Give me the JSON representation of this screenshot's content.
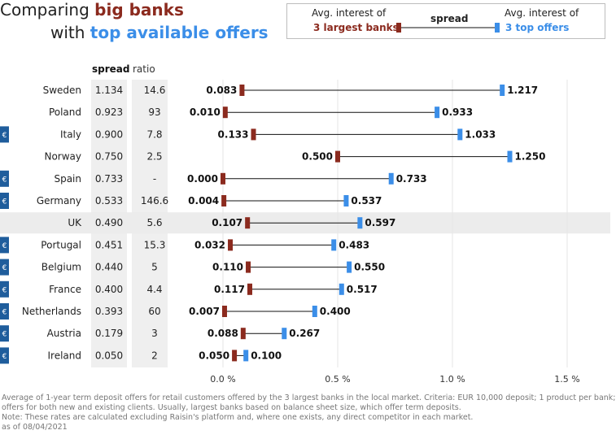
{
  "title": {
    "line1_plain": "Comparing ",
    "line1_accent": "big banks",
    "line2_plain": "with ",
    "line2_accent": "top available offers"
  },
  "legend": {
    "left_line1": "Avg. interest of",
    "left_line2": "3 largest banks",
    "middle": "spread",
    "right_line1": "Avg. interest of",
    "right_line2": "3 top offers"
  },
  "columns": {
    "spread": "spread",
    "ratio": "ratio"
  },
  "colors": {
    "big_banks": "#8b2a1e",
    "top_offers": "#3b8ee8",
    "euro_badge": "#1f5d9c",
    "highlight_row": "#ececec",
    "column_band": "#efefef"
  },
  "euro_icon": {
    "icon": "euro-badge-icon",
    "glyph": "€"
  },
  "chart_data": {
    "type": "dumbbell",
    "x_ticks": [
      "0.0 %",
      "0.5 %",
      "1.0 %",
      "1.5 %"
    ],
    "xlim": [
      0,
      1.5
    ],
    "grid": true,
    "highlight": "UK",
    "rows": [
      {
        "country": "Sweden",
        "spread": "1.134",
        "ratio": "14.6",
        "big": "0.083",
        "top": "1.217",
        "euro": false
      },
      {
        "country": "Poland",
        "spread": "0.923",
        "ratio": "93",
        "big": "0.010",
        "top": "0.933",
        "euro": false
      },
      {
        "country": "Italy",
        "spread": "0.900",
        "ratio": "7.8",
        "big": "0.133",
        "top": "1.033",
        "euro": true
      },
      {
        "country": "Norway",
        "spread": "0.750",
        "ratio": "2.5",
        "big": "0.500",
        "top": "1.250",
        "euro": false
      },
      {
        "country": "Spain",
        "spread": "0.733",
        "ratio": "-",
        "big": "0.000",
        "top": "0.733",
        "euro": true
      },
      {
        "country": "Germany",
        "spread": "0.533",
        "ratio": "146.6",
        "big": "0.004",
        "top": "0.537",
        "euro": true
      },
      {
        "country": "UK",
        "spread": "0.490",
        "ratio": "5.6",
        "big": "0.107",
        "top": "0.597",
        "euro": false
      },
      {
        "country": "Portugal",
        "spread": "0.451",
        "ratio": "15.3",
        "big": "0.032",
        "top": "0.483",
        "euro": true
      },
      {
        "country": "Belgium",
        "spread": "0.440",
        "ratio": "5",
        "big": "0.110",
        "top": "0.550",
        "euro": true
      },
      {
        "country": "France",
        "spread": "0.400",
        "ratio": "4.4",
        "big": "0.117",
        "top": "0.517",
        "euro": true
      },
      {
        "country": "Netherlands",
        "spread": "0.393",
        "ratio": "60",
        "big": "0.007",
        "top": "0.400",
        "euro": true
      },
      {
        "country": "Austria",
        "spread": "0.179",
        "ratio": "3",
        "big": "0.088",
        "top": "0.267",
        "euro": true
      },
      {
        "country": "Ireland",
        "spread": "0.050",
        "ratio": "2",
        "big": "0.050",
        "top": "0.100",
        "euro": true
      }
    ]
  },
  "footnotes": [
    "Average of 1-year term deposit offers for retail customers offered by the 3 largest banks in the local market. Criteria: EUR 10,000 deposit; 1 product per bank;",
    "offers for both new and existing clients. Usually, largest banks based on balance sheet size, which offer term deposits.",
    "Note: These rates are calculated excluding Raisin's platform and, where one exists, any direct competitor in each market.",
    "as of 08/04/2021"
  ]
}
